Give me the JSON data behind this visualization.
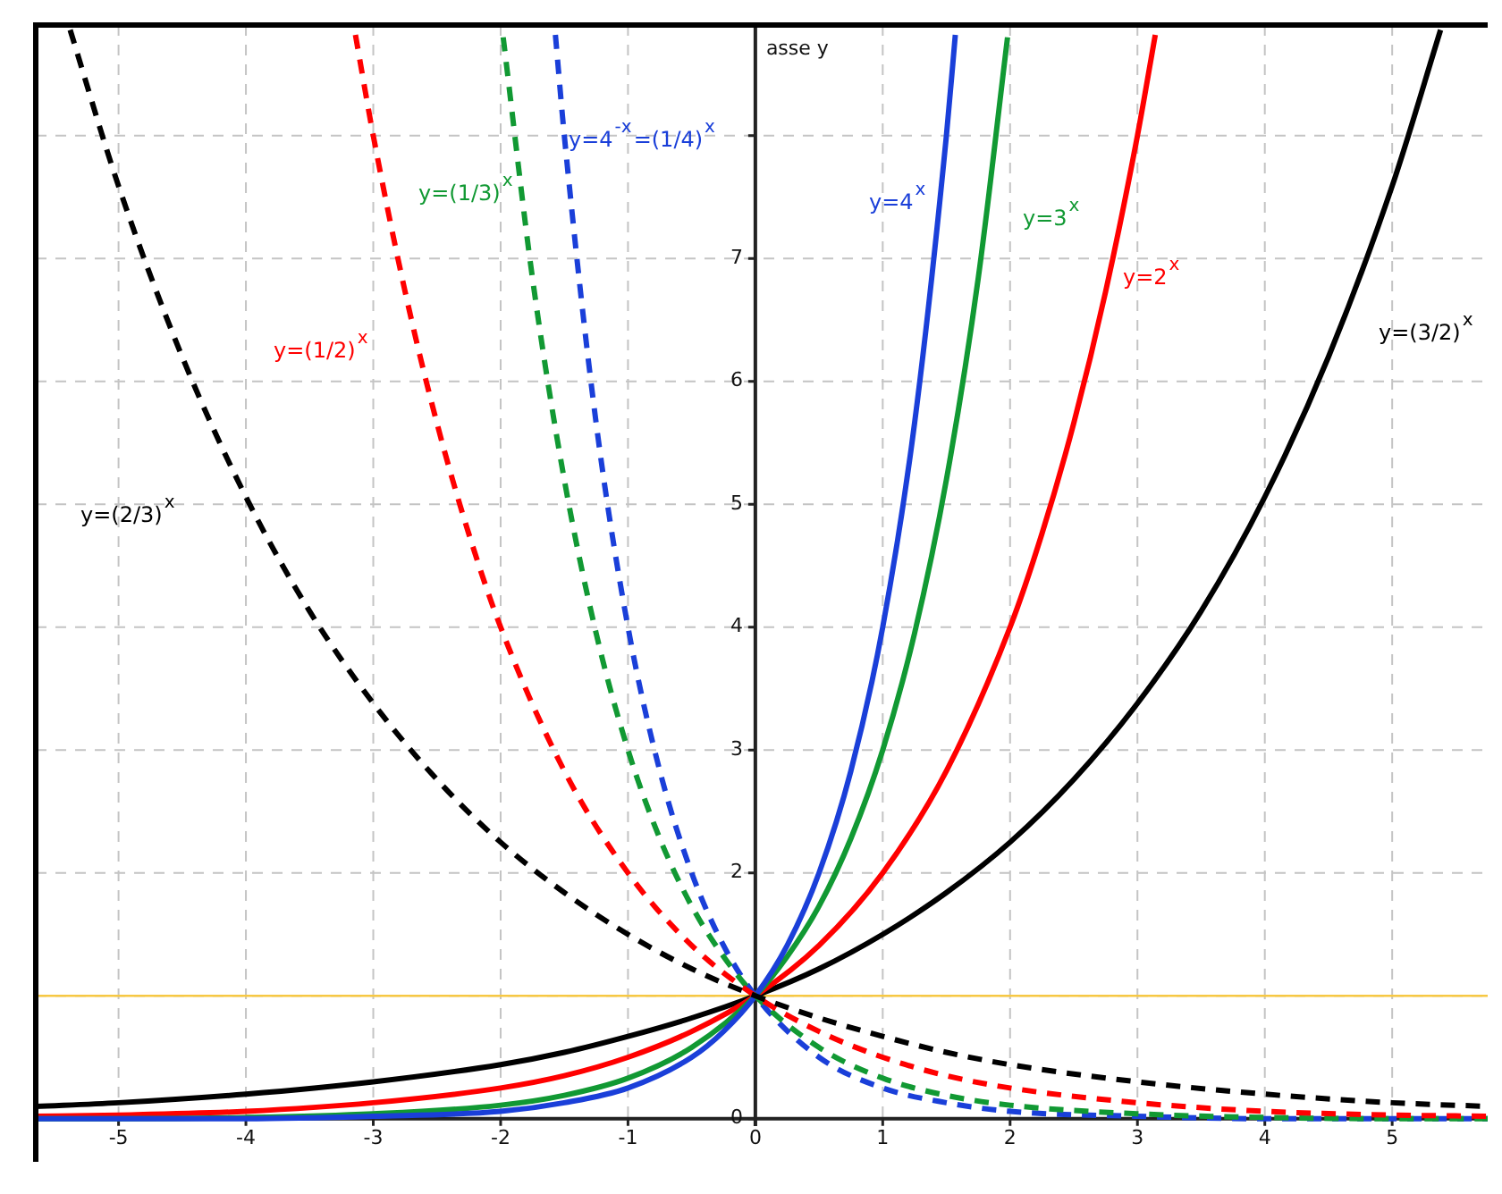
{
  "chart_data": {
    "type": "line",
    "ylabel": "asse y",
    "xlim": [
      -5.65,
      5.75
    ],
    "ylim": [
      -0.06,
      8.9
    ],
    "xticks": [
      -5,
      -4,
      -3,
      -2,
      -1,
      0,
      1,
      2,
      3,
      4,
      5
    ],
    "yticks": [
      0,
      {
        "value": 1,
        "label": null
      },
      2,
      3,
      4,
      5,
      6,
      7,
      {
        "value": 8,
        "label": null
      }
    ],
    "grid": true,
    "legend": false,
    "marker": "none",
    "ref_lines": [
      {
        "axis": "y",
        "value": 1,
        "color": "#f7c843"
      }
    ],
    "series": [
      {
        "name": "y=(2/3)$^{x}$",
        "color": "#000000",
        "line_style": "dashed",
        "x": [
          -5.38,
          -5,
          -4.5,
          -4,
          -3.5,
          -3,
          -2.5,
          -2,
          -1.5,
          -1,
          -0.5,
          0,
          0.5,
          1,
          1.5,
          2,
          3,
          4,
          5,
          5.75
        ],
        "values": [
          8.86,
          7.59,
          6.2,
          5.06,
          4.13,
          3.38,
          2.76,
          2.25,
          1.84,
          1.5,
          1.22,
          1,
          0.82,
          0.67,
          0.54,
          0.44,
          0.3,
          0.2,
          0.13,
          0.1
        ]
      },
      {
        "name": "y=(1/2)$^{x}$",
        "color": "#ff0000",
        "line_style": "dashed",
        "x": [
          -3.14,
          -3,
          -2.75,
          -2.5,
          -2.25,
          -2,
          -1.5,
          -1,
          -0.5,
          0,
          0.5,
          1,
          1.5,
          2,
          3,
          4,
          5,
          5.75
        ],
        "values": [
          8.82,
          8,
          6.73,
          5.66,
          4.76,
          4,
          2.83,
          2,
          1.41,
          1,
          0.71,
          0.5,
          0.35,
          0.25,
          0.13,
          0.06,
          0.03,
          0.02
        ]
      },
      {
        "name": "y=(1/3)$^{x}$",
        "color": "#119933",
        "line_style": "dashed",
        "x": [
          -1.98,
          -1.75,
          -1.5,
          -1.25,
          -1,
          -0.75,
          -0.5,
          -0.25,
          0,
          0.5,
          1,
          1.5,
          2,
          3,
          4,
          5,
          5.75
        ],
        "values": [
          8.8,
          6.84,
          5.2,
          3.95,
          3,
          2.28,
          1.73,
          1.32,
          1,
          0.58,
          0.33,
          0.19,
          0.11,
          0.04,
          0.01,
          0,
          0
        ]
      },
      {
        "name": "y=4$^{-x}$=(1/4)$^{x}$",
        "color": "#1a3fd9",
        "line_style": "dashed",
        "x": [
          -1.57,
          -1.5,
          -1.25,
          -1,
          -0.75,
          -0.5,
          -0.25,
          0,
          0.5,
          1,
          1.5,
          2,
          3,
          4,
          5,
          5.75
        ],
        "values": [
          8.82,
          8,
          5.66,
          4,
          2.83,
          2,
          1.41,
          1,
          0.5,
          0.25,
          0.13,
          0.06,
          0.02,
          0,
          0,
          0
        ]
      },
      {
        "name": "y=4$^{x}$",
        "color": "#1a3fd9",
        "line_style": "solid",
        "x": [
          -5.65,
          -5,
          -4,
          -3,
          -2,
          -1.5,
          -1,
          -0.5,
          -0.25,
          0,
          0.25,
          0.5,
          0.75,
          1,
          1.25,
          1.5,
          1.57
        ],
        "values": [
          0,
          0,
          0,
          0.02,
          0.06,
          0.13,
          0.25,
          0.5,
          0.71,
          1,
          1.41,
          2,
          2.83,
          4,
          5.66,
          8,
          8.82
        ]
      },
      {
        "name": "y=3$^{x}$",
        "color": "#119933",
        "line_style": "solid",
        "x": [
          -5.65,
          -5,
          -4,
          -3,
          -2,
          -1.5,
          -1,
          -0.5,
          0,
          0.25,
          0.5,
          0.75,
          1,
          1.25,
          1.5,
          1.75,
          1.98
        ],
        "values": [
          0,
          0,
          0.01,
          0.04,
          0.11,
          0.19,
          0.33,
          0.58,
          1,
          1.32,
          1.73,
          2.28,
          3,
          3.95,
          5.2,
          6.84,
          8.8
        ]
      },
      {
        "name": "y=2$^{x}$",
        "color": "#ff0000",
        "line_style": "solid",
        "x": [
          -5.65,
          -5,
          -4,
          -3,
          -2,
          -1.5,
          -1,
          -0.5,
          0,
          0.5,
          1,
          1.5,
          2,
          2.25,
          2.5,
          2.75,
          3,
          3.14
        ],
        "values": [
          0.02,
          0.03,
          0.06,
          0.13,
          0.25,
          0.35,
          0.5,
          0.71,
          1,
          1.41,
          2,
          2.83,
          4,
          4.76,
          5.66,
          6.73,
          8,
          8.82
        ]
      },
      {
        "name": "y=(3/2)$^{x}$",
        "color": "#000000",
        "line_style": "solid",
        "x": [
          -5.65,
          -5,
          -4,
          -3,
          -2,
          -1.5,
          -1,
          -0.5,
          0,
          0.5,
          1,
          1.5,
          2,
          2.5,
          3,
          3.5,
          4,
          4.5,
          5,
          5.38
        ],
        "values": [
          0.1,
          0.13,
          0.2,
          0.3,
          0.44,
          0.54,
          0.67,
          0.82,
          1,
          1.22,
          1.5,
          1.84,
          2.25,
          2.76,
          3.38,
          4.13,
          5.06,
          6.2,
          7.59,
          8.86
        ]
      }
    ]
  }
}
